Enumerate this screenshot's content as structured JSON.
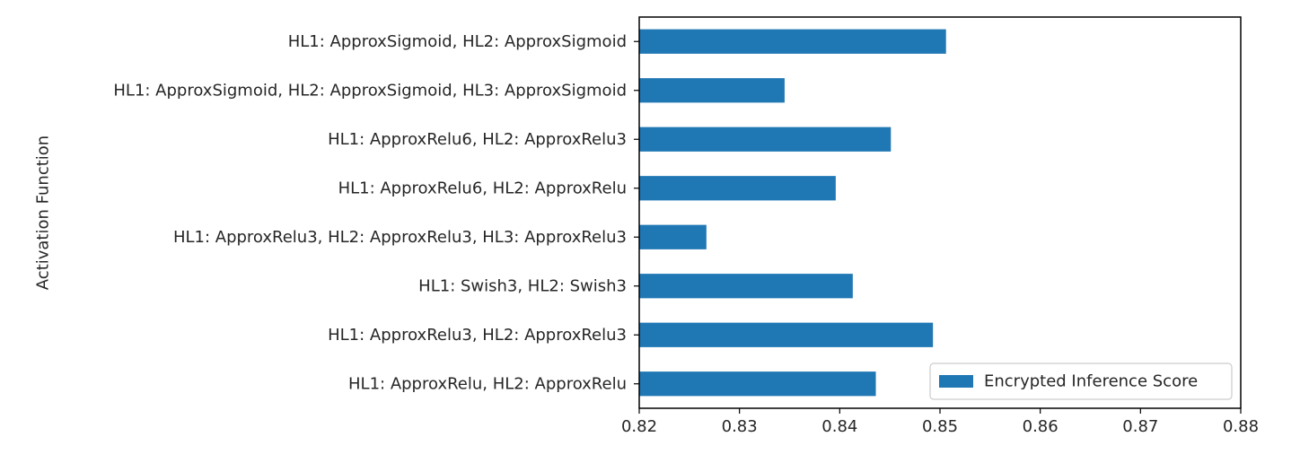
{
  "chart_data": {
    "type": "bar",
    "orientation": "horizontal",
    "categories": [
      "HL1: ApproxSigmoid, HL2: ApproxSigmoid",
      "HL1: ApproxSigmoid, HL2: ApproxSigmoid, HL3: ApproxSigmoid",
      "HL1: ApproxRelu6, HL2: ApproxRelu3",
      "HL1: ApproxRelu6, HL2: ApproxRelu",
      "HL1: ApproxRelu3, HL2: ApproxRelu3, HL3: ApproxRelu3",
      "HL1: Swish3, HL2: Swish3",
      "HL1: ApproxRelu3, HL2: ApproxRelu3",
      "HL1: ApproxRelu, HL2: ApproxRelu"
    ],
    "series": [
      {
        "name": "Encrypted Inference Score",
        "color": "#1f77b4",
        "values": [
          0.8506,
          0.8345,
          0.8451,
          0.8396,
          0.8267,
          0.8413,
          0.8493,
          0.8436
        ]
      }
    ],
    "xlim": [
      0.82,
      0.88
    ],
    "xticks": [
      "0.82",
      "0.83",
      "0.84",
      "0.85",
      "0.86",
      "0.87",
      "0.88"
    ],
    "xlabel": "",
    "ylabel": "Activation Function",
    "grid": false,
    "legend_position": "lower-right"
  }
}
